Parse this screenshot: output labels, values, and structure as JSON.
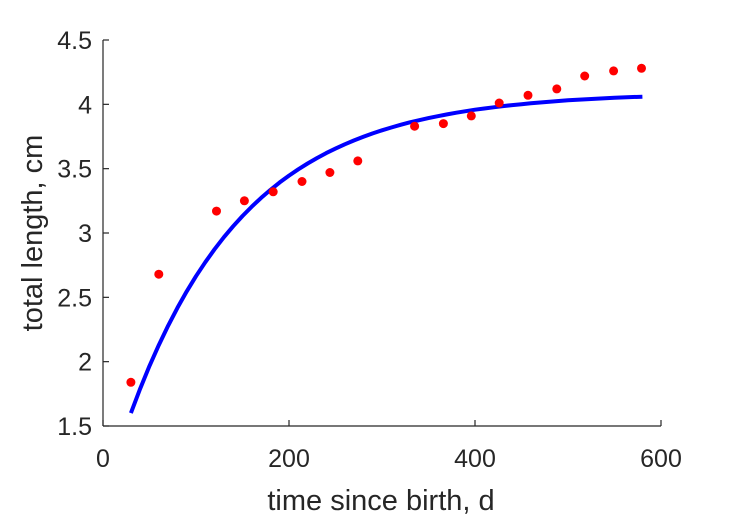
{
  "chart_data": {
    "type": "scatter",
    "xlabel": "time since birth, d",
    "ylabel": "total length, cm",
    "xlim": [
      0,
      600
    ],
    "ylim": [
      1.5,
      4.5
    ],
    "xticks": [
      0,
      200,
      400,
      600
    ],
    "yticks": [
      1.5,
      2,
      2.5,
      3,
      3.5,
      4,
      4.5
    ],
    "xtick_labels": [
      "0",
      "200",
      "400",
      "600"
    ],
    "ytick_labels": [
      "1.5",
      "2",
      "2.5",
      "3",
      "3.5",
      "4",
      "4.5"
    ],
    "grid": false,
    "legend": "none",
    "series": [
      {
        "kind": "points",
        "color": "#ff0000",
        "x": [
          30,
          60,
          122,
          152,
          183,
          214,
          244,
          274,
          335,
          366,
          396,
          426,
          457,
          488,
          518,
          549,
          579
        ],
        "y": [
          1.84,
          2.68,
          3.17,
          3.25,
          3.32,
          3.4,
          3.47,
          3.56,
          3.83,
          3.85,
          3.91,
          4.01,
          4.07,
          4.12,
          4.22,
          4.26,
          4.28
        ]
      },
      {
        "kind": "line",
        "color": "#0000ff",
        "x": [
          30,
          40,
          50,
          60,
          70,
          80,
          90,
          100,
          110,
          120,
          130,
          140,
          150,
          160,
          170,
          180,
          190,
          200,
          210,
          220,
          230,
          240,
          250,
          260,
          270,
          280,
          290,
          300,
          310,
          320,
          330,
          340,
          350,
          360,
          370,
          380,
          390,
          400,
          410,
          420,
          430,
          440,
          450,
          460,
          470,
          480,
          490,
          500,
          510,
          520,
          530,
          540,
          550,
          560,
          570,
          580
        ],
        "y": [
          1.6,
          1.791,
          1.967,
          2.129,
          2.279,
          2.418,
          2.546,
          2.664,
          2.773,
          2.874,
          2.967,
          3.053,
          3.132,
          3.205,
          3.273,
          3.335,
          3.393,
          3.446,
          3.495,
          3.54,
          3.582,
          3.621,
          3.656,
          3.689,
          3.72,
          3.748,
          3.774,
          3.798,
          3.82,
          3.841,
          3.86,
          3.877,
          3.893,
          3.908,
          3.922,
          3.935,
          3.947,
          3.958,
          3.968,
          3.977,
          3.986,
          3.994,
          4.001,
          4.008,
          4.014,
          4.02,
          4.026,
          4.031,
          4.035,
          4.04,
          4.044,
          4.047,
          4.051,
          4.054,
          4.057,
          4.059
        ]
      }
    ]
  }
}
